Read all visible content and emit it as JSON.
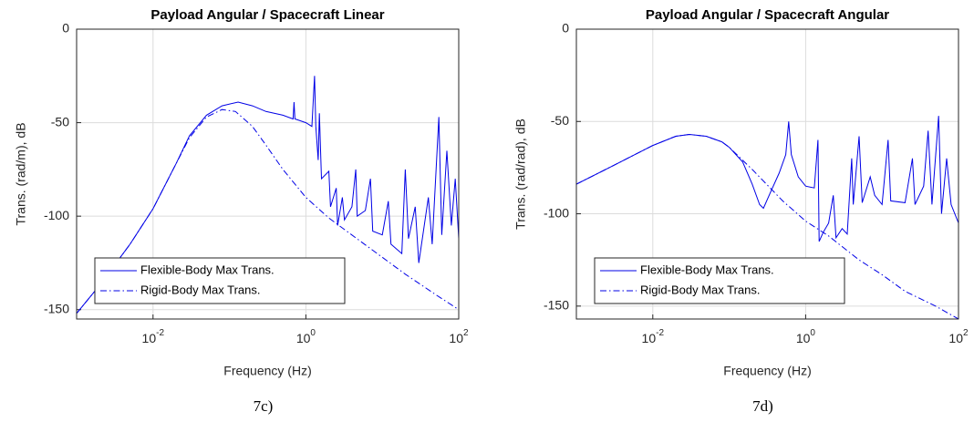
{
  "chart_data": [
    {
      "type": "line",
      "title": "Payload Angular / Spacecraft Linear",
      "xlabel": "Frequency (Hz)",
      "ylabel": "Trans. (rad/m), dB",
      "caption": "7c)",
      "xscale": "log",
      "xlim": [
        0.001,
        100
      ],
      "ylim": [
        -155,
        0
      ],
      "grid": true,
      "legend": "lower left",
      "xticks": [
        {
          "value": 0.01,
          "label": "10",
          "exponent": "-2"
        },
        {
          "value": 1,
          "label": "10",
          "exponent": "0"
        },
        {
          "value": 100,
          "label": "10",
          "exponent": "2"
        }
      ],
      "yticks": [
        -150,
        -100,
        -50,
        0
      ],
      "series": [
        {
          "name": "Flexible-Body Max Trans.",
          "color": "#0000e6",
          "style": "solid",
          "x": [
            0.001,
            0.002,
            0.005,
            0.01,
            0.02,
            0.03,
            0.05,
            0.08,
            0.13,
            0.2,
            0.3,
            0.5,
            0.68,
            0.7,
            0.72,
            1,
            1.2,
            1.3,
            1.35,
            1.45,
            1.5,
            1.6,
            2,
            2.1,
            2.5,
            2.6,
            3,
            3.2,
            4,
            4.5,
            4.7,
            6,
            7,
            7.5,
            10,
            12,
            13,
            18,
            20,
            22,
            27,
            30,
            40,
            45,
            55,
            60,
            70,
            80,
            90,
            100
          ],
          "values": [
            -152,
            -137,
            -115,
            -96,
            -72,
            -57,
            -46,
            -41,
            -39,
            -41,
            -44,
            -46,
            -48,
            -39,
            -48,
            -50,
            -52,
            -25,
            -52,
            -70,
            -45,
            -80,
            -76,
            -95,
            -85,
            -105,
            -90,
            -102,
            -95,
            -75,
            -100,
            -97,
            -80,
            -108,
            -110,
            -92,
            -115,
            -120,
            -75,
            -112,
            -95,
            -125,
            -90,
            -115,
            -47,
            -110,
            -65,
            -105,
            -80,
            -112
          ]
        },
        {
          "name": "Rigid-Body Max Trans.",
          "color": "#0000e6",
          "style": "dashdot",
          "x": [
            0.001,
            0.002,
            0.005,
            0.01,
            0.02,
            0.03,
            0.05,
            0.08,
            0.12,
            0.2,
            0.3,
            0.5,
            1,
            2,
            5,
            10,
            20,
            50,
            100
          ],
          "values": [
            -152,
            -137,
            -115,
            -96,
            -72,
            -58,
            -47,
            -43,
            -44,
            -52,
            -62,
            -75,
            -90,
            -101,
            -113,
            -122,
            -131,
            -142,
            -150
          ]
        }
      ]
    },
    {
      "type": "line",
      "title": "Payload Angular / Spacecraft Angular",
      "xlabel": "Frequency (Hz)",
      "ylabel": "Trans. (rad/rad), dB",
      "caption": "7d)",
      "xscale": "log",
      "xlim": [
        0.001,
        100
      ],
      "ylim": [
        -157,
        0
      ],
      "grid": true,
      "legend": "lower left",
      "xticks": [
        {
          "value": 0.01,
          "label": "10",
          "exponent": "-2"
        },
        {
          "value": 1,
          "label": "10",
          "exponent": "0"
        },
        {
          "value": 100,
          "label": "10",
          "exponent": "2"
        }
      ],
      "yticks": [
        -150,
        -100,
        -50,
        0
      ],
      "series": [
        {
          "name": "Flexible-Body Max Trans.",
          "color": "#0000e6",
          "style": "solid",
          "x": [
            0.001,
            0.003,
            0.01,
            0.02,
            0.03,
            0.05,
            0.08,
            0.1,
            0.15,
            0.2,
            0.25,
            0.28,
            0.35,
            0.45,
            0.55,
            0.6,
            0.65,
            0.8,
            1,
            1.3,
            1.45,
            1.5,
            1.7,
            2,
            2.3,
            2.5,
            3,
            3.5,
            4,
            4.2,
            5,
            5.5,
            7,
            8,
            10,
            12,
            13,
            20,
            25,
            27,
            35,
            40,
            45,
            55,
            60,
            70,
            80,
            100
          ],
          "values": [
            -84,
            -74,
            -63,
            -58,
            -57,
            -58,
            -61,
            -64,
            -72,
            -84,
            -95,
            -97,
            -88,
            -78,
            -68,
            -50,
            -68,
            -80,
            -85,
            -86,
            -60,
            -115,
            -110,
            -105,
            -90,
            -113,
            -108,
            -111,
            -70,
            -95,
            -58,
            -94,
            -80,
            -90,
            -95,
            -60,
            -93,
            -94,
            -70,
            -95,
            -85,
            -55,
            -95,
            -47,
            -100,
            -70,
            -95,
            -105
          ]
        },
        {
          "name": "Rigid-Body Max Trans.",
          "color": "#0000e6",
          "style": "dashdot",
          "x": [
            0.001,
            0.003,
            0.01,
            0.02,
            0.03,
            0.05,
            0.08,
            0.1,
            0.2,
            0.5,
            1,
            2,
            5,
            10,
            20,
            50,
            100
          ],
          "values": [
            -84,
            -74,
            -63,
            -58,
            -57,
            -58,
            -61,
            -64,
            -76,
            -93,
            -104,
            -112,
            -125,
            -133,
            -142,
            -150,
            -157
          ]
        }
      ]
    }
  ]
}
